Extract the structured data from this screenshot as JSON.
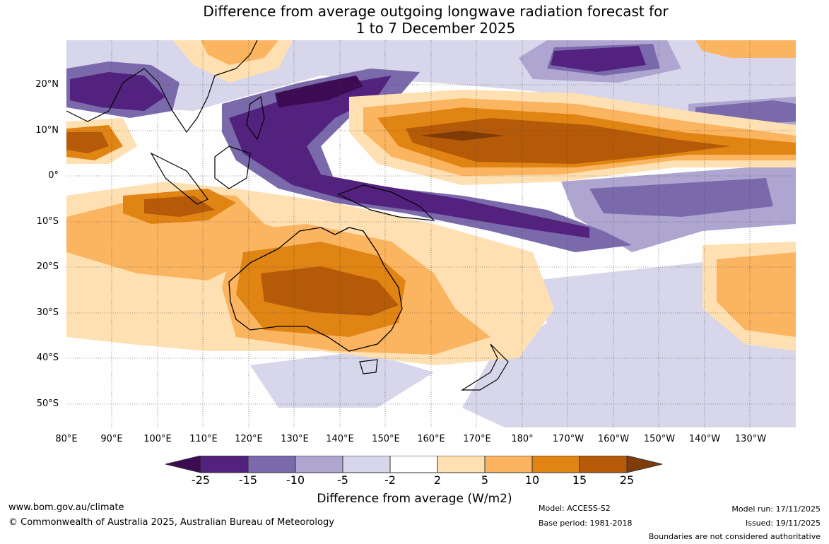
{
  "title": {
    "line1": "Difference from average outgoing longwave radiation forecast for",
    "line2": "1 to 7 December 2025"
  },
  "axes": {
    "latitudes": [
      "20°N",
      "10°N",
      "0°",
      "10°S",
      "20°S",
      "30°S",
      "40°S",
      "50°S"
    ],
    "longitudes": [
      "80°E",
      "90°E",
      "100°E",
      "110°E",
      "120°E",
      "130°E",
      "140°E",
      "150°E",
      "160°E",
      "170°E",
      "180°",
      "170°W",
      "160°W",
      "150°W",
      "140°W",
      "130°W"
    ]
  },
  "colorbar": {
    "ticks": [
      "-25",
      "-15",
      "-10",
      "-5",
      "-2",
      "2",
      "5",
      "10",
      "15",
      "25"
    ],
    "colors": [
      "#3d0a54",
      "#53227f",
      "#7a6aab",
      "#aea6d0",
      "#d7d6ea",
      "#fefefe",
      "#fee0b2",
      "#fbb45f",
      "#e08413",
      "#b55a08",
      "#7f3b08"
    ],
    "label": "Difference from average (W/m2)"
  },
  "footer": {
    "website": "www.bom.gov.au/climate",
    "copyright": "© Commonwealth of Australia 2025, Australian Bureau of Meteorology",
    "model": "Model: ACCESS-S2",
    "base_period": "Base period: 1981-2018",
    "model_run": "Model run: 17/11/2025",
    "issued": "Issued: 19/11/2025",
    "disclaimer": "Boundaries are not considered authoritative"
  }
}
